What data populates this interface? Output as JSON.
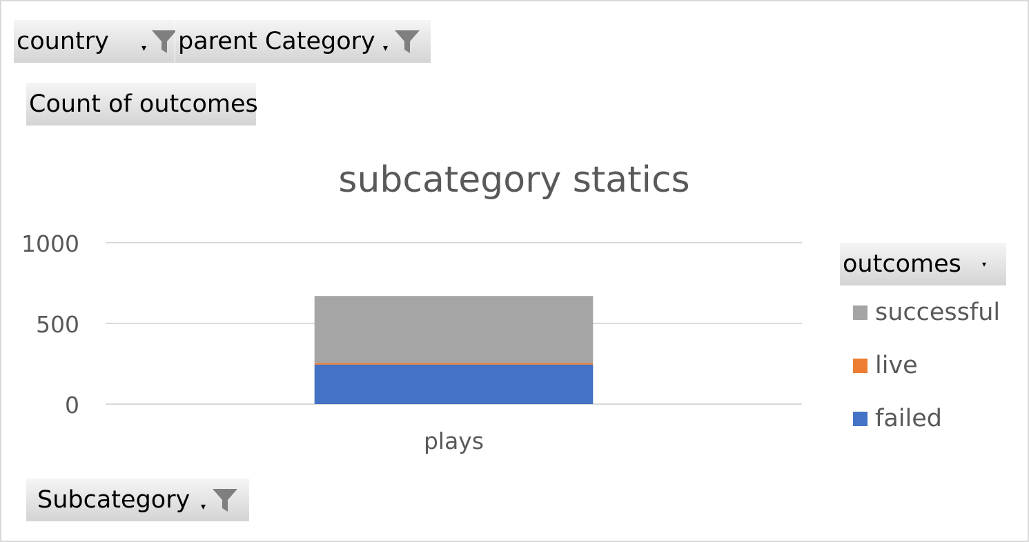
{
  "filters": {
    "country": {
      "label": "country",
      "icon": "funnel-icon"
    },
    "parent_category": {
      "label": "parent Category",
      "icon": "funnel-icon"
    }
  },
  "values_field": {
    "label": "Count of outcomes"
  },
  "axis_field": {
    "label": "Subcategory",
    "icon": "funnel-icon"
  },
  "legend_field": {
    "label": "outcomes",
    "icon": "dropdown-arrow-icon"
  },
  "colors": {
    "successful": "#a5a5a5",
    "live": "#ed7d31",
    "failed": "#4472c4",
    "grid": "#d9d9d9",
    "button_bg": "#e0e0e0"
  },
  "chart_data": {
    "type": "bar",
    "stacked": true,
    "title": "subcategory statics",
    "categories": [
      "plays"
    ],
    "series": [
      {
        "name": "failed",
        "values": [
          245
        ],
        "color": "#4472c4"
      },
      {
        "name": "live",
        "values": [
          10
        ],
        "color": "#ed7d31"
      },
      {
        "name": "successful",
        "values": [
          415
        ],
        "color": "#a5a5a5"
      }
    ],
    "ylim": [
      0,
      1000
    ],
    "yticks": [
      "0",
      "500",
      "1000"
    ],
    "grid": true,
    "legend_position": "right",
    "legend_order": [
      "successful",
      "live",
      "failed"
    ]
  }
}
